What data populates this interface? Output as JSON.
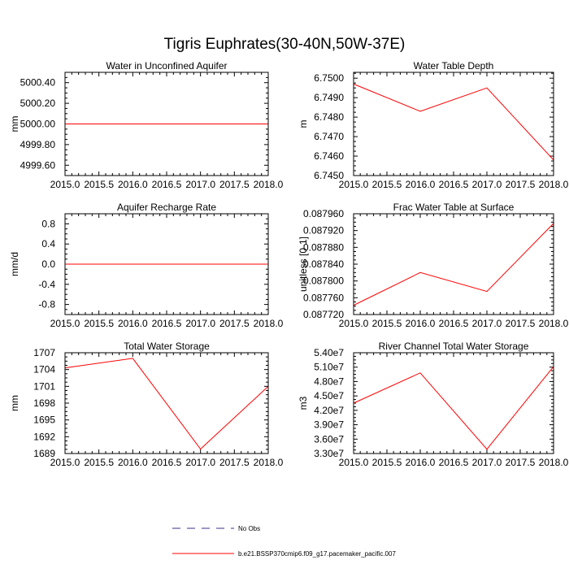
{
  "figure": {
    "title": "Tigris Euphrates(30-40N,50W-37E)",
    "legend": [
      {
        "label": "No Obs",
        "color": "#3b2f8a",
        "dash": "dashed"
      },
      {
        "label": "b.e21.BSSP370cmip6.f09_g17.pacemaker_pacific.007",
        "color": "#ff0000",
        "dash": "solid"
      }
    ]
  },
  "chart_data": [
    {
      "type": "line",
      "title": "Water in Unconfined Aquifer",
      "ylabel": "mm",
      "xlim": [
        2015.0,
        2018.0
      ],
      "ylim": [
        4999.5,
        5000.5
      ],
      "xticks": [
        "2015.0",
        "2015.5",
        "2016.0",
        "2016.5",
        "2017.0",
        "2017.5",
        "2018.0"
      ],
      "yticks": [
        4999.6,
        4999.8,
        5000.0,
        5000.2,
        5000.4
      ],
      "ytick_labels": [
        "4999.60",
        "4999.80",
        "5000.00",
        "5000.20",
        "5000.40"
      ],
      "series": [
        {
          "color": "#ff0000",
          "x": [
            2015,
            2016,
            2017,
            2018
          ],
          "y": [
            5000.0,
            5000.0,
            5000.0,
            5000.0
          ]
        }
      ]
    },
    {
      "type": "line",
      "title": "Water Table Depth",
      "ylabel": "m",
      "xlim": [
        2015.0,
        2018.0
      ],
      "ylim": [
        6.745,
        6.7503
      ],
      "xticks": [
        "2015.0",
        "2015.5",
        "2016.0",
        "2016.5",
        "2017.0",
        "2017.5",
        "2018.0"
      ],
      "yticks": [
        6.745,
        6.746,
        6.747,
        6.748,
        6.749,
        6.75
      ],
      "ytick_labels": [
        "6.7450",
        "6.7460",
        "6.7470",
        "6.7480",
        "6.7490",
        "6.7500"
      ],
      "series": [
        {
          "color": "#ff0000",
          "x": [
            2015,
            2016,
            2017,
            2018
          ],
          "y": [
            6.7497,
            6.7483,
            6.7495,
            6.7458
          ]
        }
      ]
    },
    {
      "type": "line",
      "title": "Aquifer Recharge Rate",
      "ylabel": "mm/d",
      "xlim": [
        2015.0,
        2018.0
      ],
      "ylim": [
        -1.0,
        1.0
      ],
      "xticks": [
        "2015.0",
        "2015.5",
        "2016.0",
        "2016.5",
        "2017.0",
        "2017.5",
        "2018.0"
      ],
      "yticks": [
        -0.8,
        -0.4,
        0.0,
        0.4,
        0.8
      ],
      "ytick_labels": [
        "-0.8",
        "-0.4",
        "0.0",
        "0.4",
        "0.8"
      ],
      "series": [
        {
          "color": "#ff0000",
          "x": [
            2015,
            2016,
            2017,
            2018
          ],
          "y": [
            0.0,
            0.0,
            0.0,
            0.0
          ]
        }
      ]
    },
    {
      "type": "line",
      "title": "Frac Water Table at Surface",
      "ylabel": "unitless [0-1]",
      "xlim": [
        2015.0,
        2018.0
      ],
      "ylim": [
        0.08772,
        0.08796
      ],
      "xticks": [
        "2015.0",
        "2015.5",
        "2016.0",
        "2016.5",
        "2017.0",
        "2017.5",
        "2018.0"
      ],
      "yticks": [
        0.08772,
        0.08776,
        0.0878,
        0.08784,
        0.08788,
        0.08792,
        0.08796
      ],
      "ytick_labels": [
        "0.087720",
        "0.087760",
        "0.087800",
        "0.087840",
        "0.087880",
        "0.087920",
        "0.087960"
      ],
      "series": [
        {
          "color": "#ff0000",
          "x": [
            2015,
            2016,
            2017,
            2018
          ],
          "y": [
            0.087742,
            0.08782,
            0.087775,
            0.087937
          ]
        }
      ]
    },
    {
      "type": "line",
      "title": "Total Water Storage",
      "ylabel": "mm",
      "xlim": [
        2015.0,
        2018.0
      ],
      "ylim": [
        1689,
        1707
      ],
      "xticks": [
        "2015.0",
        "2015.5",
        "2016.0",
        "2016.5",
        "2017.0",
        "2017.5",
        "2018.0"
      ],
      "yticks": [
        1689,
        1692,
        1695,
        1698,
        1701,
        1704,
        1707
      ],
      "ytick_labels": [
        "1689",
        "1692",
        "1695",
        "1698",
        "1701",
        "1704",
        "1707"
      ],
      "series": [
        {
          "color": "#ff0000",
          "x": [
            2015,
            2016,
            2017,
            2018
          ],
          "y": [
            1704.3,
            1706.0,
            1689.8,
            1701.0
          ]
        }
      ]
    },
    {
      "type": "line",
      "title": "River Channel Total Water Storage",
      "ylabel": "m3",
      "xlim": [
        2015.0,
        2018.0
      ],
      "ylim": [
        33000000,
        54000000
      ],
      "xticks": [
        "2015.0",
        "2015.5",
        "2016.0",
        "2016.5",
        "2017.0",
        "2017.5",
        "2018.0"
      ],
      "yticks": [
        33000000,
        36000000,
        39000000,
        42000000,
        45000000,
        48000000,
        51000000,
        54000000
      ],
      "ytick_labels": [
        "3.30e7",
        "3.60e7",
        "3.90e7",
        "4.20e7",
        "4.50e7",
        "4.80e7",
        "5.10e7",
        "5.40e7"
      ],
      "series": [
        {
          "color": "#ff0000",
          "x": [
            2015,
            2016,
            2017,
            2018
          ],
          "y": [
            43500000,
            49800000,
            33900000,
            51100000
          ]
        }
      ]
    }
  ]
}
